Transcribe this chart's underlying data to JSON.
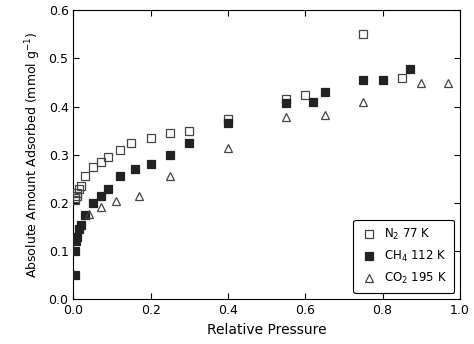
{
  "N2_x": [
    0.003,
    0.005,
    0.008,
    0.01,
    0.015,
    0.02,
    0.03,
    0.05,
    0.07,
    0.09,
    0.12,
    0.15,
    0.2,
    0.25,
    0.3,
    0.4,
    0.55,
    0.6,
    0.75,
    0.85
  ],
  "N2_y": [
    0.207,
    0.21,
    0.215,
    0.22,
    0.23,
    0.235,
    0.255,
    0.275,
    0.285,
    0.295,
    0.31,
    0.325,
    0.335,
    0.345,
    0.35,
    0.375,
    0.415,
    0.425,
    0.55,
    0.46
  ],
  "CH4_x": [
    0.003,
    0.005,
    0.007,
    0.01,
    0.015,
    0.02,
    0.03,
    0.05,
    0.07,
    0.09,
    0.12,
    0.16,
    0.2,
    0.25,
    0.3,
    0.4,
    0.55,
    0.62,
    0.65,
    0.75,
    0.8,
    0.87
  ],
  "CH4_y": [
    0.05,
    0.1,
    0.12,
    0.13,
    0.145,
    0.155,
    0.175,
    0.2,
    0.215,
    0.23,
    0.255,
    0.27,
    0.28,
    0.3,
    0.325,
    0.365,
    0.408,
    0.41,
    0.43,
    0.455,
    0.455,
    0.478
  ],
  "CO2_x": [
    0.04,
    0.07,
    0.11,
    0.17,
    0.25,
    0.4,
    0.55,
    0.65,
    0.75,
    0.9,
    0.97
  ],
  "CO2_y": [
    0.178,
    0.192,
    0.205,
    0.215,
    0.255,
    0.315,
    0.378,
    0.382,
    0.41,
    0.45,
    0.45
  ],
  "xlabel": "Relative Pressure",
  "ylabel": "Absolute Amount Adsorbed (mmol g$^{-1}$)",
  "xlim": [
    0.0,
    1.0
  ],
  "ylim": [
    0.0,
    0.6
  ],
  "legend_labels": [
    "N$_2$ 77 K",
    "CH$_4$ 112 K",
    "CO$_2$ 195 K"
  ],
  "face_color": "#ffffff",
  "marker_color_open": "#444444",
  "marker_color_filled": "#222222"
}
